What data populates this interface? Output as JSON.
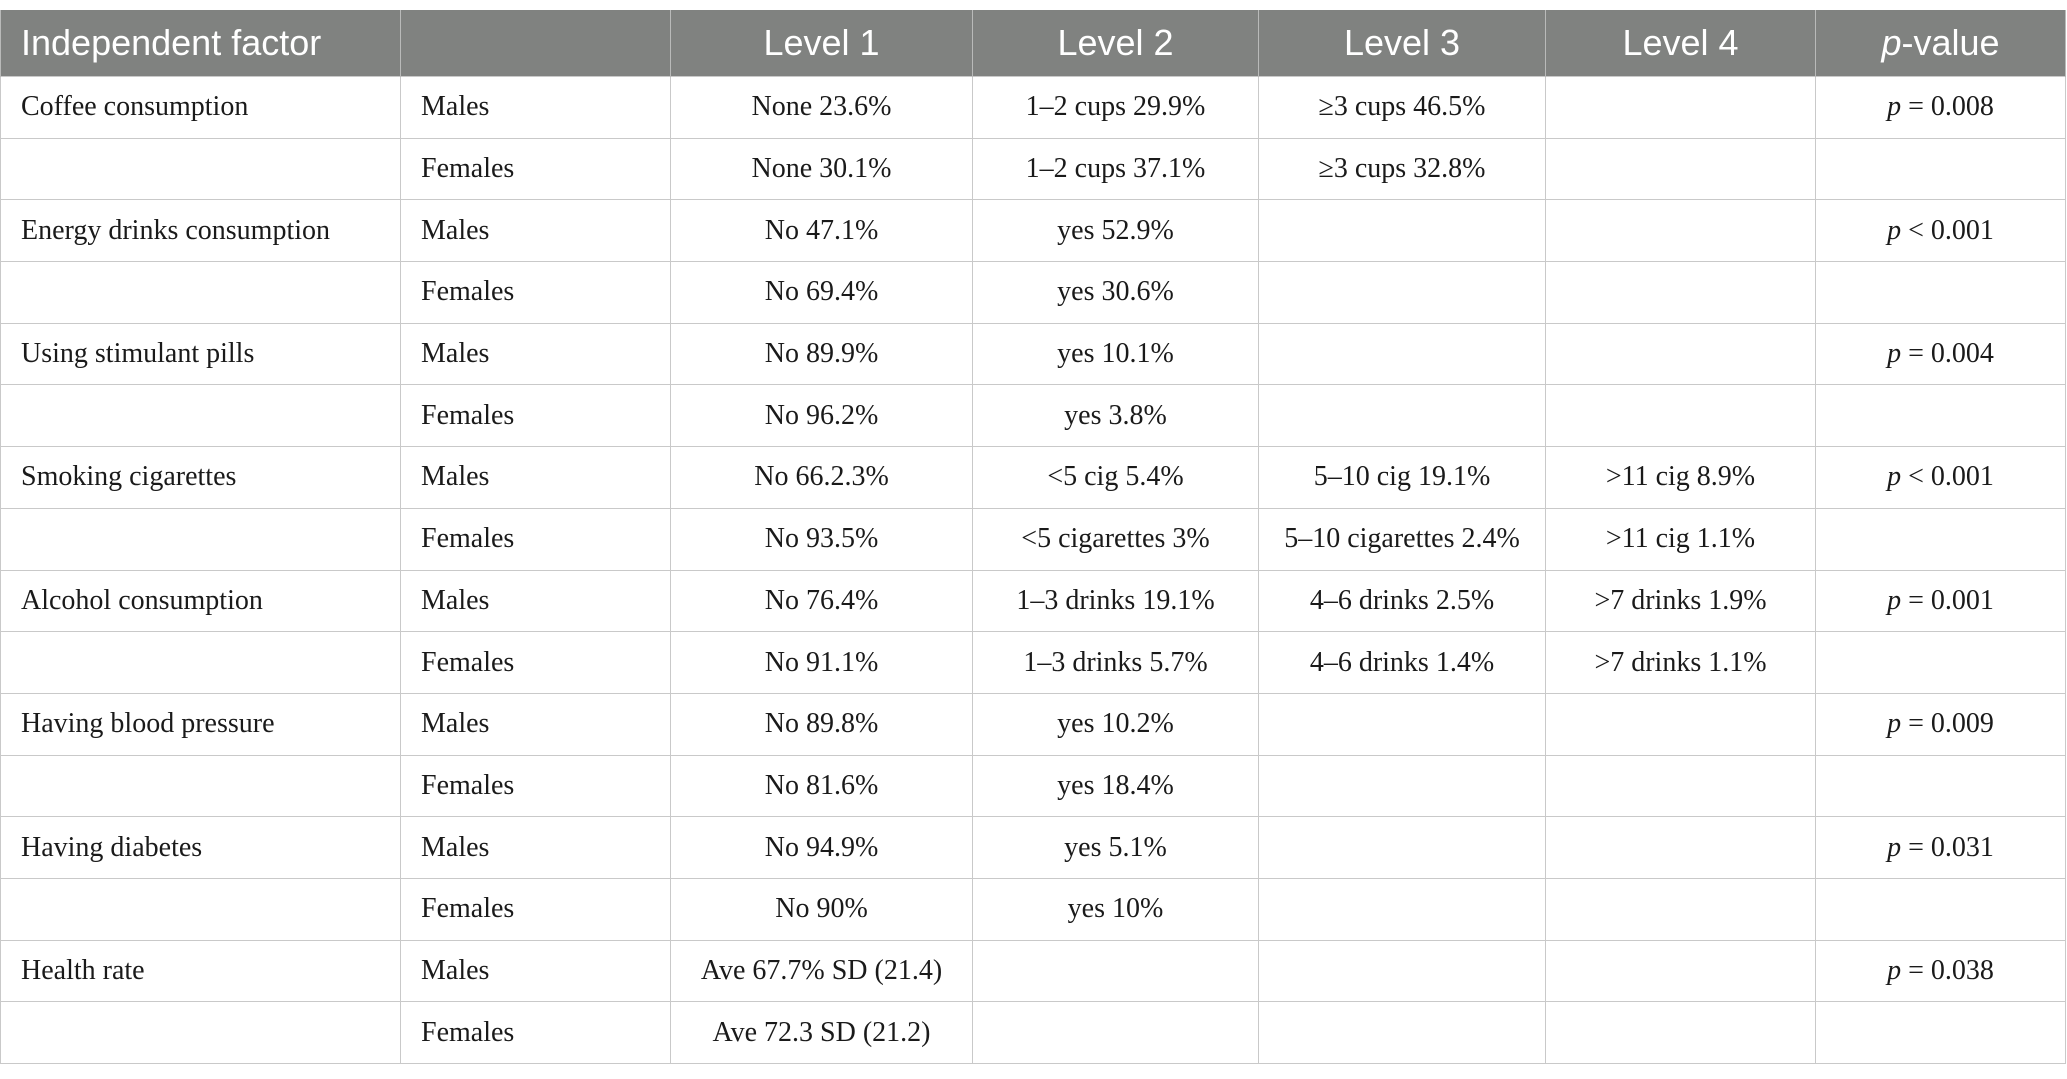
{
  "header": {
    "factor": "Independent factor",
    "sex": "",
    "level1": "Level 1",
    "level2": "Level 2",
    "level3": "Level 3",
    "level4": "Level 4",
    "pvalue_p": "p",
    "pvalue_rest": "-value"
  },
  "rows": [
    {
      "factor": "Coffee consumption",
      "sex": "Males",
      "l1": "None 23.6%",
      "l2": "1–2 cups 29.9%",
      "l3": "≥3 cups 46.5%",
      "l4": "",
      "p_sym": "p",
      "p_rest": " = 0.008"
    },
    {
      "factor": "",
      "sex": "Females",
      "l1": "None 30.1%",
      "l2": "1–2 cups 37.1%",
      "l3": "≥3 cups 32.8%",
      "l4": "",
      "p_sym": "",
      "p_rest": ""
    },
    {
      "factor": "Energy drinks consumption",
      "sex": "Males",
      "l1": "No 47.1%",
      "l2": "yes 52.9%",
      "l3": "",
      "l4": "",
      "p_sym": "p",
      "p_rest": " < 0.001"
    },
    {
      "factor": "",
      "sex": "Females",
      "l1": "No 69.4%",
      "l2": "yes 30.6%",
      "l3": "",
      "l4": "",
      "p_sym": "",
      "p_rest": ""
    },
    {
      "factor": "Using stimulant pills",
      "sex": "Males",
      "l1": "No 89.9%",
      "l2": "yes 10.1%",
      "l3": "",
      "l4": "",
      "p_sym": "p",
      "p_rest": " = 0.004"
    },
    {
      "factor": "",
      "sex": "Females",
      "l1": "No 96.2%",
      "l2": "yes 3.8%",
      "l3": "",
      "l4": "",
      "p_sym": "",
      "p_rest": ""
    },
    {
      "factor": "Smoking cigarettes",
      "sex": "Males",
      "l1": "No 66.2.3%",
      "l2": "<5 cig 5.4%",
      "l3": "5–10 cig 19.1%",
      "l4": ">11 cig 8.9%",
      "p_sym": "p",
      "p_rest": " < 0.001"
    },
    {
      "factor": "",
      "sex": "Females",
      "l1": "No 93.5%",
      "l2": "<5 cigarettes 3%",
      "l3": "5–10 cigarettes 2.4%",
      "l4": ">11 cig 1.1%",
      "p_sym": "",
      "p_rest": ""
    },
    {
      "factor": "Alcohol consumption",
      "sex": "Males",
      "l1": "No 76.4%",
      "l2": "1–3 drinks 19.1%",
      "l3": "4–6 drinks 2.5%",
      "l4": ">7 drinks 1.9%",
      "p_sym": "p",
      "p_rest": " = 0.001"
    },
    {
      "factor": "",
      "sex": "Females",
      "l1": "No 91.1%",
      "l2": "1–3 drinks 5.7%",
      "l3": "4–6 drinks 1.4%",
      "l4": ">7 drinks 1.1%",
      "p_sym": "",
      "p_rest": ""
    },
    {
      "factor": "Having blood pressure",
      "sex": "Males",
      "l1": "No 89.8%",
      "l2": "yes 10.2%",
      "l3": "",
      "l4": "",
      "p_sym": "p",
      "p_rest": " = 0.009"
    },
    {
      "factor": "",
      "sex": "Females",
      "l1": "No 81.6%",
      "l2": "yes 18.4%",
      "l3": "",
      "l4": "",
      "p_sym": "",
      "p_rest": ""
    },
    {
      "factor": "Having diabetes",
      "sex": "Males",
      "l1": "No 94.9%",
      "l2": "yes 5.1%",
      "l3": "",
      "l4": "",
      "p_sym": "p",
      "p_rest": " = 0.031"
    },
    {
      "factor": "",
      "sex": "Females",
      "l1": "No 90%",
      "l2": "yes 10%",
      "l3": "",
      "l4": "",
      "p_sym": "",
      "p_rest": ""
    },
    {
      "factor": "Health rate",
      "sex": "Males",
      "l1": "Ave 67.7% SD (21.4)",
      "l2": "",
      "l3": "",
      "l4": "",
      "p_sym": "p",
      "p_rest": " = 0.038"
    },
    {
      "factor": "",
      "sex": "Females",
      "l1": "Ave 72.3 SD (21.2)",
      "l2": "",
      "l3": "",
      "l4": "",
      "p_sym": "",
      "p_rest": ""
    }
  ]
}
